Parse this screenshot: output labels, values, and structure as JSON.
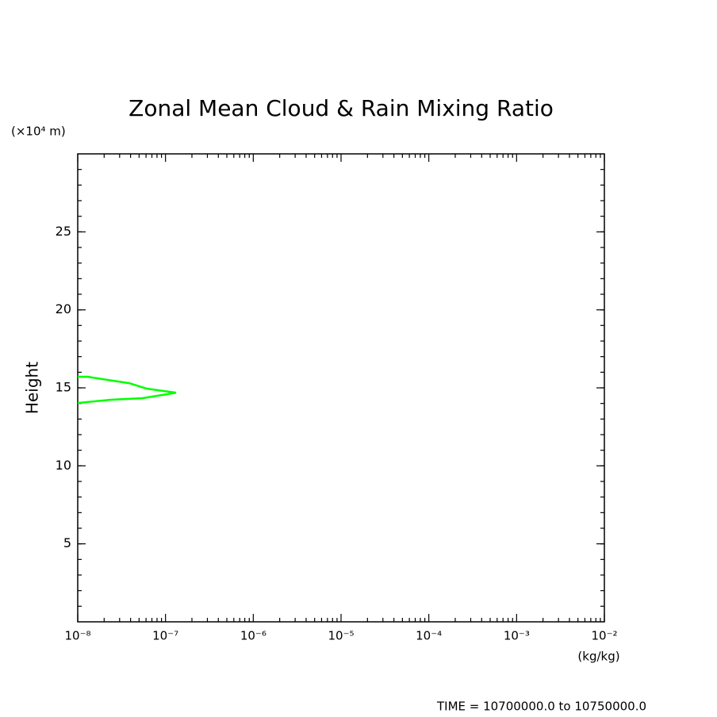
{
  "chart_data": {
    "type": "line",
    "title": "Zonal Mean Cloud & Rain Mixing Ratio",
    "y_label": "Height",
    "y_units": "(×10⁴ m)",
    "x_units": "(kg/kg)",
    "footer": "TIME = 10700000.0 to 10750000.0",
    "x_scale": "log",
    "xlim": [
      1e-08,
      0.01
    ],
    "xticks": [
      {
        "value": 1e-08,
        "label": "10⁻⁸"
      },
      {
        "value": 1e-07,
        "label": "10⁻⁷"
      },
      {
        "value": 1e-06,
        "label": "10⁻⁶"
      },
      {
        "value": 1e-05,
        "label": "10⁻⁵"
      },
      {
        "value": 0.0001,
        "label": "10⁻⁴"
      },
      {
        "value": 0.001,
        "label": "10⁻³"
      },
      {
        "value": 0.01,
        "label": "10⁻²"
      }
    ],
    "ylim": [
      0,
      30
    ],
    "yticks": [
      5,
      10,
      15,
      20,
      25
    ],
    "x": [
      1e-08,
      1.29e-08,
      3.86e-08,
      6.1e-08,
      1.32e-07,
      5.5e-08,
      2.4e-08,
      1e-08
    ],
    "series": [
      {
        "color": "#00ff00",
        "values": [
          15.71,
          15.71,
          15.3,
          14.95,
          14.69,
          14.34,
          14.24,
          14.03
        ]
      }
    ]
  }
}
